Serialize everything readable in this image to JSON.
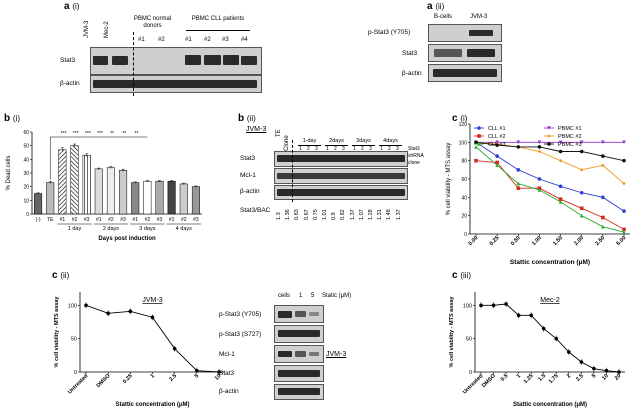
{
  "panels": {
    "a_i": {
      "letter": "a",
      "sub": "(i)",
      "lanes": [
        "JVM-3",
        "Mec-2"
      ],
      "group_normal": "PBMC normal donors",
      "group_cll": "PBMC CLL patients",
      "normal_lanes": [
        "#1",
        "#2"
      ],
      "cll_lanes": [
        "#1",
        "#2",
        "#3",
        "#4"
      ],
      "rows": [
        "Stat3",
        "β-actin"
      ]
    },
    "a_ii": {
      "letter": "a",
      "sub": "(ii)",
      "lanes": [
        "B-cells",
        "JVM-3"
      ],
      "rows": [
        "p-Stat3 (Y705)",
        "Stat3",
        "β-actin"
      ]
    },
    "b_ii": {
      "letter": "b",
      "sub": "(ii)",
      "cell_line": "JVM-3",
      "lanes_first": [
        "TE",
        "Clone"
      ],
      "day_groups": [
        "1-day",
        "2days",
        "3days",
        "4days"
      ],
      "clone_nums": [
        "1",
        "2",
        "3"
      ],
      "rows": [
        "Stat3",
        "Mcl-1",
        "β-actin"
      ],
      "ratio_label": "Stat3/BAC",
      "right_label": "Stat3 shRNA clone",
      "ratios": [
        "1.3",
        "1.36",
        "0.83",
        "0.67",
        "0.75",
        "1.01",
        "0.9",
        "0.82",
        "1.37",
        "1.07",
        "1.28",
        "1.31",
        "1.48",
        "1.37"
      ]
    },
    "c_ii_blot": {
      "lanes": [
        "cells",
        "1",
        "5"
      ],
      "unit": "Static (μM)",
      "rows": [
        "p-Stat3 (Y705)",
        "p-Stat3 (S727)",
        "Mcl-1",
        "Stat3",
        "β-actin"
      ],
      "cell_line": "JVM-3"
    }
  },
  "chart_data": [
    {
      "id": "b_i",
      "letter": "b",
      "sub": "(i)",
      "type": "bar",
      "ylabel": "% Dead cells",
      "xlabel": "Days post induction",
      "ylim": [
        0,
        60
      ],
      "yticks": [
        "0",
        "10",
        "20",
        "30",
        "40",
        "50",
        "60"
      ],
      "categories": [
        "(-)",
        "TE",
        "#1",
        "#2",
        "#3",
        "#1",
        "#2",
        "#3",
        "#1",
        "#2",
        "#3",
        "#1",
        "#2",
        "#3"
      ],
      "values": [
        15,
        23,
        47,
        50,
        43,
        33,
        34,
        32,
        23,
        24,
        24,
        24,
        22,
        20
      ],
      "errors": [
        0.5,
        0.8,
        1.5,
        1.2,
        1.0,
        0.6,
        0.7,
        0.8,
        0.5,
        0.6,
        0.5,
        0.5,
        0.6,
        0.5
      ],
      "group_labels": [
        "1 day",
        "2 days",
        "3 days",
        "4 days"
      ],
      "significance": [
        "***",
        "***",
        "***",
        "***",
        "**",
        "**",
        "**"
      ]
    },
    {
      "id": "c_i",
      "letter": "c",
      "sub": "(i)",
      "type": "line",
      "ylabel": "% cell viability - MTS assay",
      "xlabel": "Stattic concentration (μM)",
      "ylim": [
        0,
        120
      ],
      "yticks": [
        "0",
        "20",
        "40",
        "60",
        "80",
        "100",
        "120"
      ],
      "x": [
        "0.00",
        "0.25",
        "0.50",
        "1.00",
        "1.50",
        "2.00",
        "2.50",
        "5.00"
      ],
      "series": [
        {
          "name": "CLL #1",
          "color": "#2a3fd6",
          "marker": "circle",
          "values": [
            100,
            85,
            70,
            60,
            52,
            45,
            40,
            25
          ]
        },
        {
          "name": "CLL #2",
          "color": "#d42a1e",
          "marker": "square",
          "values": [
            80,
            78,
            50,
            50,
            38,
            28,
            18,
            5
          ]
        },
        {
          "name": "CLL #3",
          "color": "#2aa82a",
          "marker": "triangle",
          "values": [
            95,
            75,
            55,
            48,
            35,
            20,
            8,
            2
          ]
        },
        {
          "name": "PBMC #1",
          "color": "#9b30d0",
          "marker": "triangle-down",
          "values": [
            100,
            100,
            100,
            100,
            100,
            100,
            100,
            100
          ]
        },
        {
          "name": "PBMC #2",
          "color": "#f29a1d",
          "marker": "diamond",
          "values": [
            100,
            98,
            95,
            90,
            80,
            70,
            75,
            55
          ]
        },
        {
          "name": "PBMC #3",
          "color": "#111111",
          "marker": "circle",
          "values": [
            100,
            97,
            95,
            95,
            90,
            90,
            85,
            80
          ]
        }
      ]
    },
    {
      "id": "c_ii",
      "letter": "c",
      "sub": "(ii)",
      "type": "line",
      "title": "JVM-3",
      "ylabel": "% cell viability - MTS assay",
      "xlabel": "Stattic concentration (μM)",
      "ylim": [
        0,
        120
      ],
      "yticks": [
        "0",
        "50",
        "100"
      ],
      "x": [
        "Untreated",
        "DMSO",
        "0.25",
        "1",
        "2.5",
        "5",
        "10"
      ],
      "values": [
        100,
        88,
        91,
        82,
        35,
        2,
        0
      ]
    },
    {
      "id": "c_iii",
      "letter": "c",
      "sub": "(iii)",
      "type": "line",
      "title": "Mec-2",
      "ylabel": "% cell viability - MTS assay",
      "xlabel": "Stattic concentration (μM)",
      "ylim": [
        0,
        120
      ],
      "yticks": [
        "0",
        "50",
        "100"
      ],
      "x": [
        "Untreated",
        "DMSO",
        "0.5",
        "1",
        "1.25",
        "1.5",
        "1.75",
        "2",
        "2.5",
        "5",
        "10",
        "20"
      ],
      "values": [
        100,
        100,
        102,
        85,
        85,
        65,
        50,
        30,
        15,
        5,
        2,
        0
      ]
    }
  ]
}
